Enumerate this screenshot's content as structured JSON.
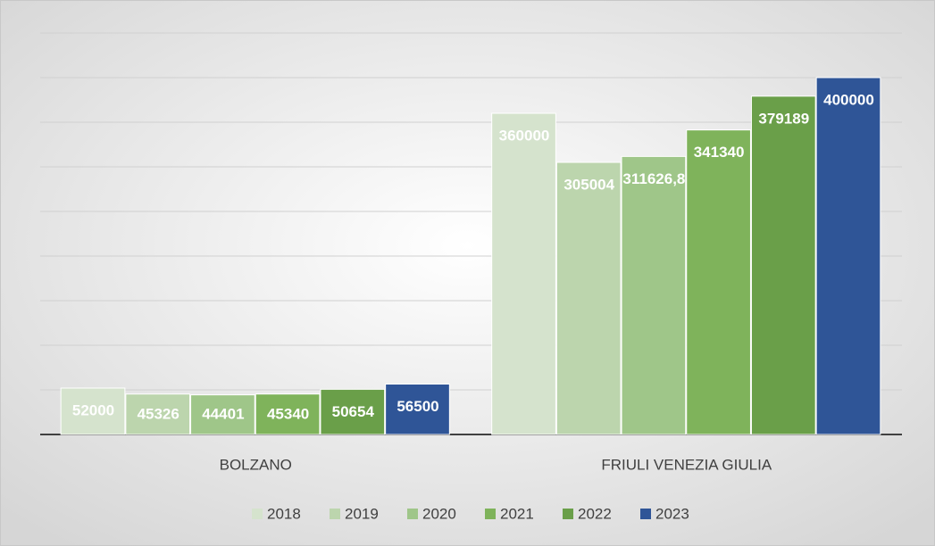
{
  "chart_data": {
    "type": "bar",
    "categories": [
      "BOLZANO",
      "FRIULI VENEZIA GIULIA"
    ],
    "series": [
      {
        "name": "2018",
        "color": "#d5e3cd",
        "values": [
          52000,
          360000
        ]
      },
      {
        "name": "2019",
        "color": "#bcd5ad",
        "values": [
          45326,
          305004
        ]
      },
      {
        "name": "2020",
        "color": "#9fc689",
        "values": [
          44401,
          311626.8
        ],
        "value_labels": [
          "44401",
          "311626,8"
        ]
      },
      {
        "name": "2021",
        "color": "#7fb35b",
        "values": [
          45340,
          341340
        ]
      },
      {
        "name": "2022",
        "color": "#6a9f49",
        "values": [
          50654,
          379189
        ]
      },
      {
        "name": "2023",
        "color": "#2f5597",
        "values": [
          56500,
          400000
        ]
      }
    ],
    "ylim": [
      0,
      450000
    ],
    "yticks": [
      0,
      50000,
      100000,
      150000,
      200000,
      250000,
      300000,
      350000,
      400000,
      450000
    ],
    "grid": true,
    "legend": "bottom"
  }
}
